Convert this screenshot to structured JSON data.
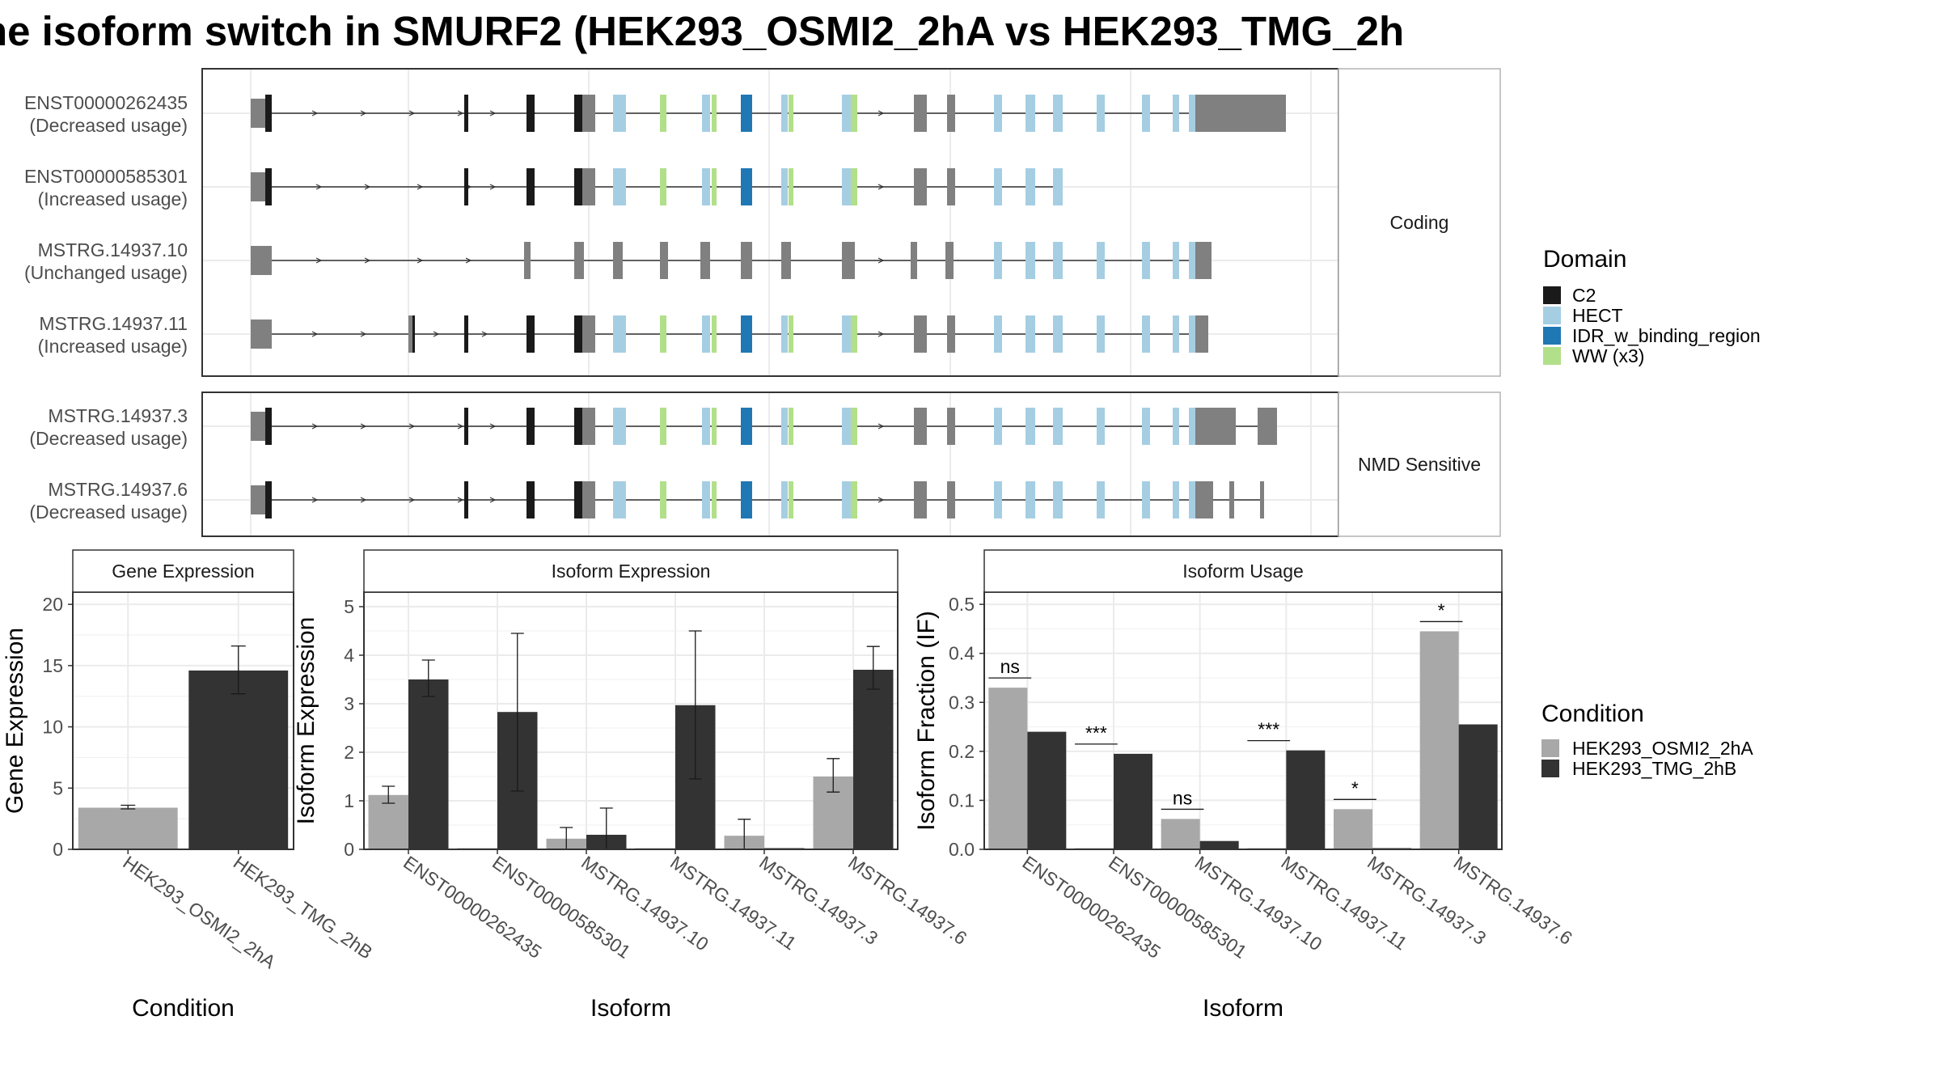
{
  "title": "ne isoform switch in SMURF2 (HEK293_OSMI2_2hA vs HEK293_TMG_2h",
  "colors": {
    "exon": "#808080",
    "C2": "#1a1a1a",
    "HECT": "#a6cee3",
    "IDR_w_binding_region": "#1f78b4",
    "WW (x3)": "#b2df8a",
    "cond1": "#a8a8a8",
    "cond2": "#333333"
  },
  "structure": {
    "panels": [
      {
        "label": "Coding",
        "transcripts": [
          {
            "id": "ENST00000262435",
            "usage": "(Decreased usage)",
            "model": "full"
          },
          {
            "id": "ENST00000585301",
            "usage": "(Increased usage)",
            "model": "trunc"
          },
          {
            "id": "MSTRG.14937.10",
            "usage": "(Unchanged usage)",
            "model": "m10"
          },
          {
            "id": "MSTRG.14937.11",
            "usage": "(Increased usage)",
            "model": "m11"
          }
        ]
      },
      {
        "label": "NMD Sensitive",
        "transcripts": [
          {
            "id": "MSTRG.14937.3",
            "usage": "(Decreased usage)",
            "model": "m3"
          },
          {
            "id": "MSTRG.14937.6",
            "usage": "(Decreased usage)",
            "model": "m6"
          }
        ]
      }
    ],
    "domain_legend": {
      "title": "Domain",
      "items": [
        {
          "name": "C2",
          "color": "#1a1a1a"
        },
        {
          "name": "HECT",
          "color": "#a6cee3"
        },
        {
          "name": "IDR_w_binding_region",
          "color": "#1f78b4"
        },
        {
          "name": "WW (x3)",
          "color": "#b2df8a"
        }
      ]
    }
  },
  "chart_data": [
    {
      "type": "bar",
      "title": "Gene Expression",
      "xlabel": "Condition",
      "ylabel": "Gene Expression",
      "ylim": [
        0,
        21
      ],
      "yticks": [
        0,
        5,
        10,
        15,
        20
      ],
      "categories": [
        "HEK293_OSMI2_2hA",
        "HEK293_TMG_2hB"
      ],
      "values": [
        3.4,
        14.6
      ],
      "errors": [
        [
          3.3,
          3.6
        ],
        [
          12.7,
          16.6
        ]
      ]
    },
    {
      "type": "bar",
      "title": "Isoform Expression",
      "xlabel": "Isoform",
      "ylabel": "Isoform Expression",
      "ylim": [
        0,
        5.3
      ],
      "yticks": [
        0,
        1,
        2,
        3,
        4,
        5
      ],
      "categories": [
        "ENST00000262435",
        "ENST00000585301",
        "MSTRG.14937.10",
        "MSTRG.14937.11",
        "MSTRG.14937.3",
        "MSTRG.14937.6"
      ],
      "series": [
        {
          "name": "HEK293_OSMI2_2hA",
          "values": [
            1.12,
            0,
            0.22,
            0,
            0.28,
            1.5
          ],
          "errors": [
            [
              0.95,
              1.3
            ],
            null,
            [
              0.0,
              0.45
            ],
            null,
            [
              0.0,
              0.62
            ],
            [
              1.18,
              1.87
            ]
          ]
        },
        {
          "name": "HEK293_TMG_2hB",
          "values": [
            3.5,
            2.83,
            0.3,
            2.97,
            0,
            3.7
          ],
          "errors": [
            [
              3.15,
              3.9
            ],
            [
              1.2,
              4.45
            ],
            [
              0.0,
              0.85
            ],
            [
              1.45,
              4.5
            ],
            null,
            [
              3.3,
              4.18
            ]
          ]
        }
      ]
    },
    {
      "type": "bar",
      "title": "Isoform Usage",
      "xlabel": "Isoform",
      "ylabel": "Isoform Fraction (IF)",
      "ylim": [
        0,
        0.525
      ],
      "yticks": [
        0.0,
        0.1,
        0.2,
        0.3,
        0.4,
        0.5
      ],
      "ytick_labels": [
        "0.0",
        "0.1",
        "0.2",
        "0.3",
        "0.4",
        "0.5"
      ],
      "categories": [
        "ENST00000262435",
        "ENST00000585301",
        "MSTRG.14937.10",
        "MSTRG.14937.11",
        "MSTRG.14937.3",
        "MSTRG.14937.6"
      ],
      "series": [
        {
          "name": "HEK293_OSMI2_2hA",
          "values": [
            0.33,
            0,
            0.062,
            0,
            0.082,
            0.445
          ]
        },
        {
          "name": "HEK293_TMG_2hB",
          "values": [
            0.24,
            0.195,
            0.017,
            0.202,
            0,
            0.255
          ]
        }
      ],
      "significance": [
        "ns",
        "***",
        "ns",
        "***",
        "*",
        "*"
      ]
    }
  ],
  "condition_legend": {
    "title": "Condition",
    "items": [
      {
        "name": "HEK293_OSMI2_2hA",
        "color": "#a8a8a8"
      },
      {
        "name": "HEK293_TMG_2hB",
        "color": "#333333"
      }
    ]
  }
}
